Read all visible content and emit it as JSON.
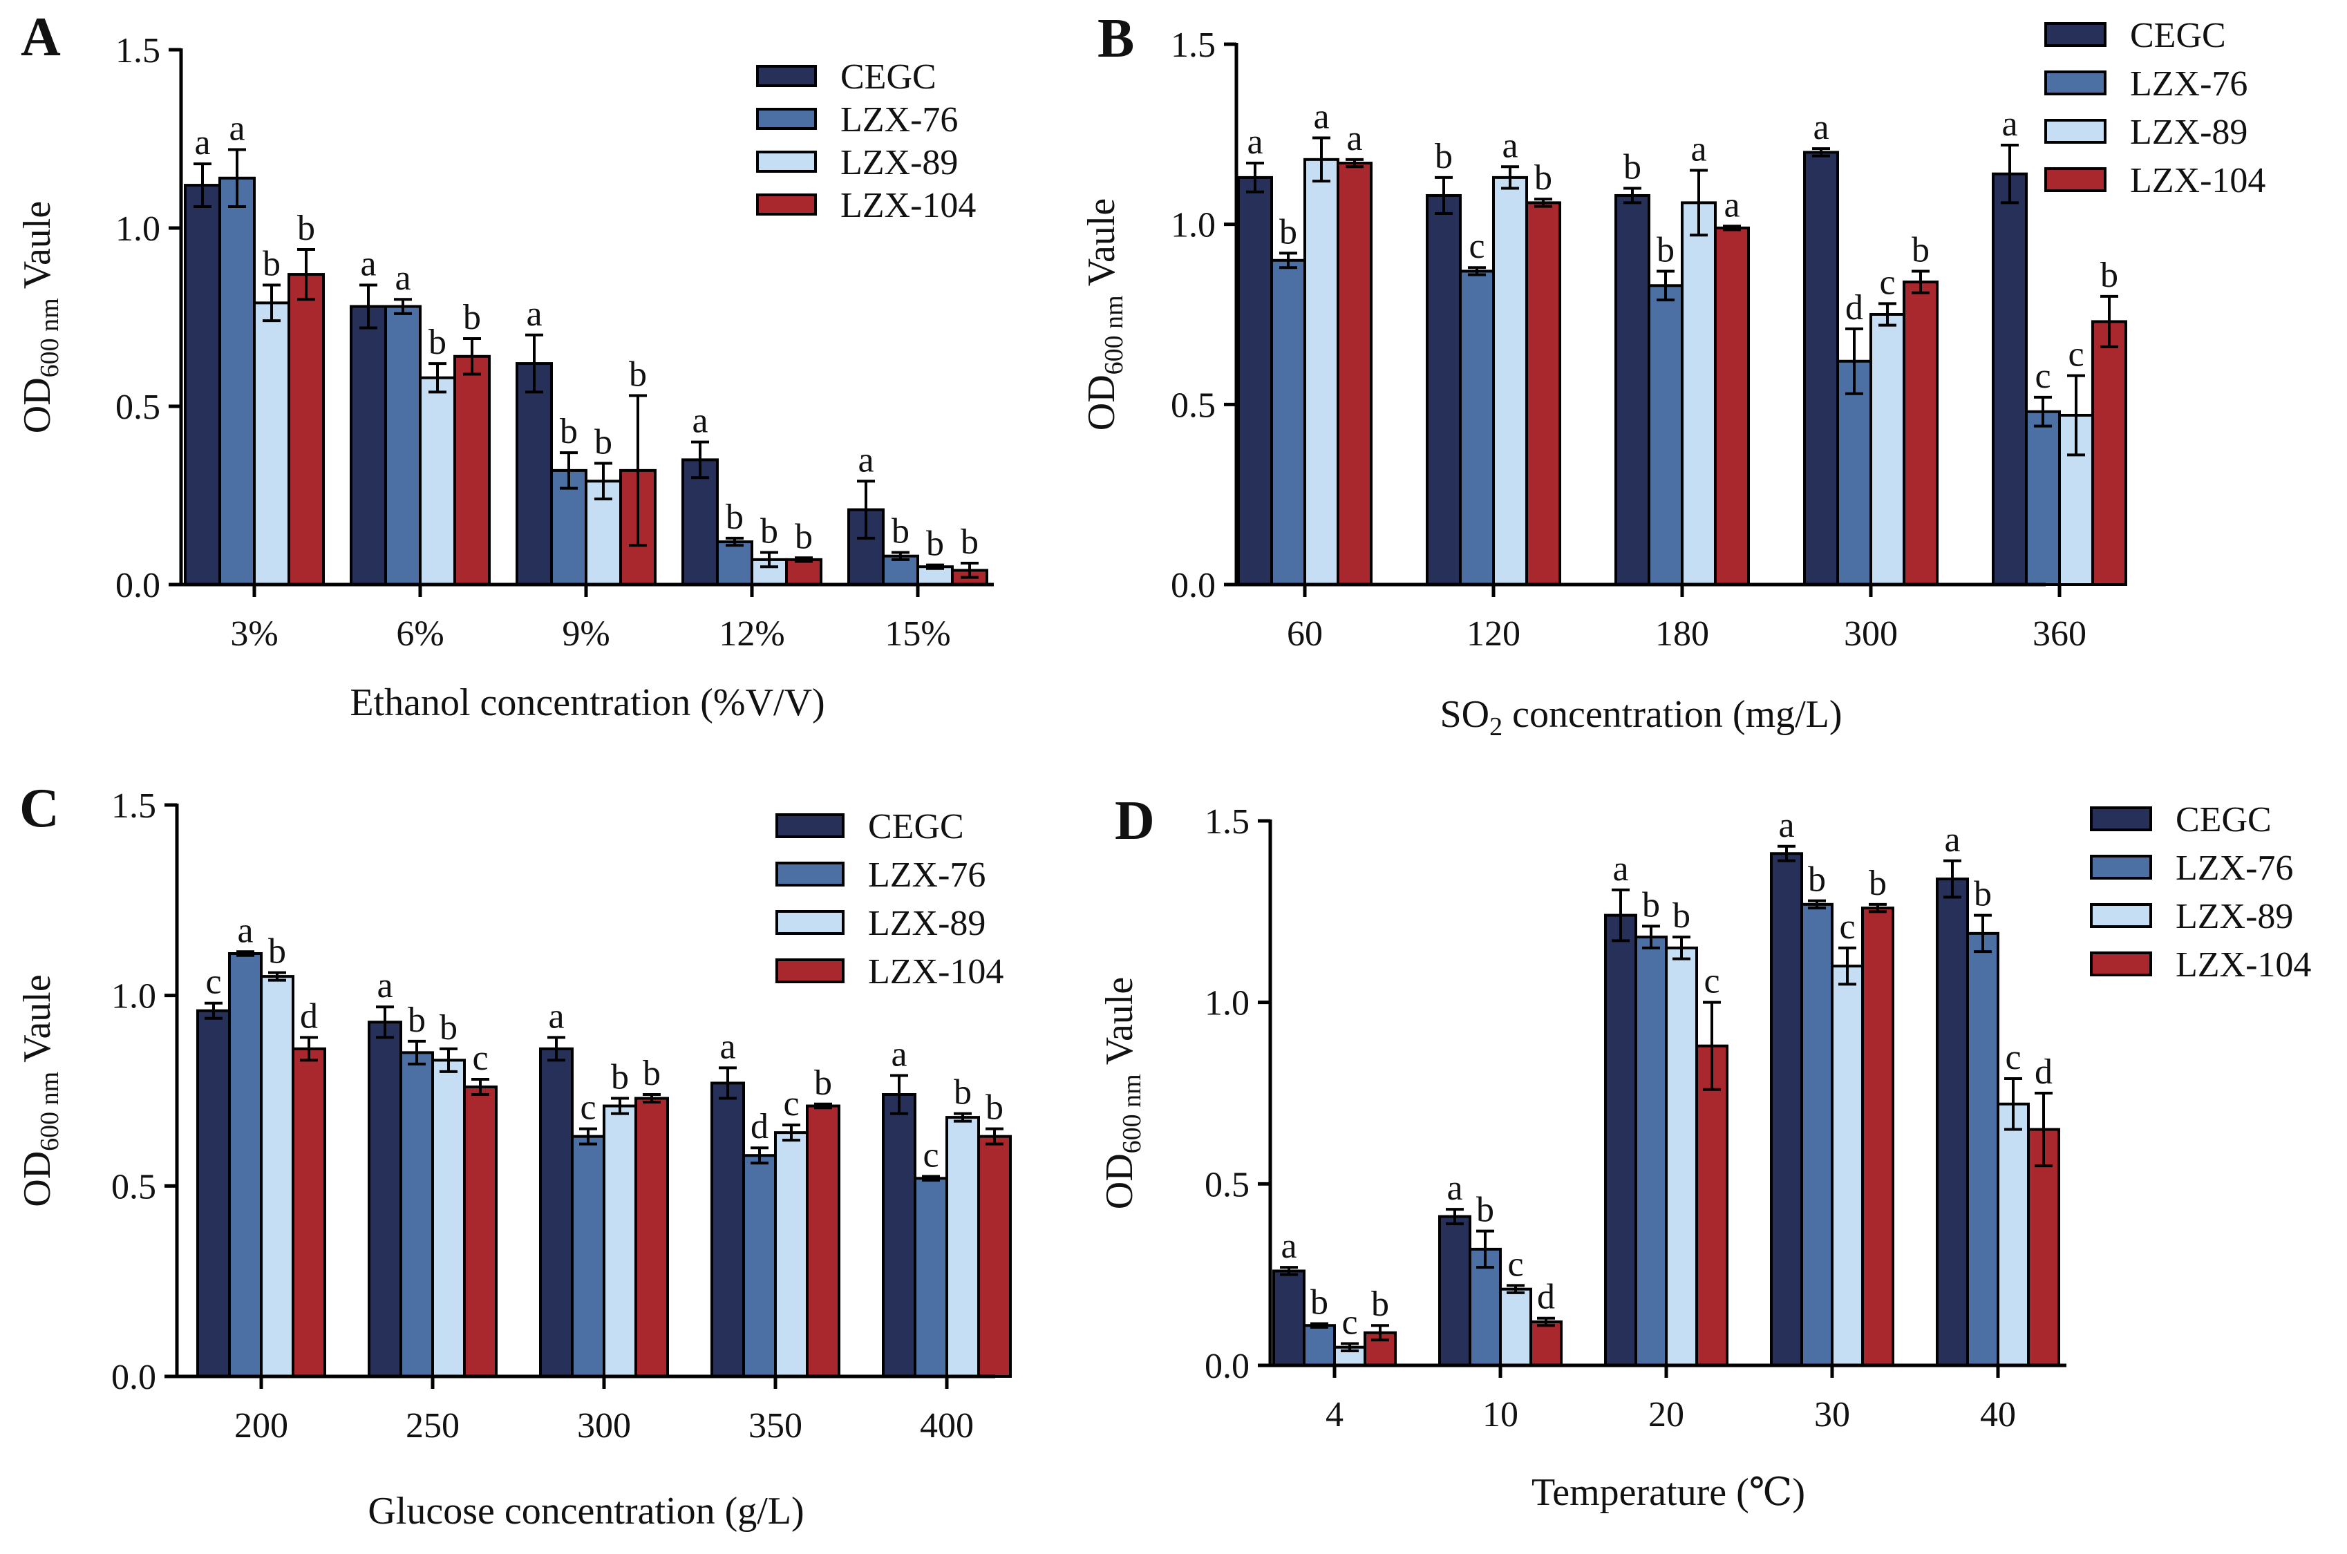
{
  "colors": {
    "CEGC": "#263059",
    "LZX-76": "#4c70a3",
    "LZX-89": "#c5def3",
    "LZX-104": "#a8282e"
  },
  "chart_data": [
    {
      "panel": "A",
      "type": "bar",
      "ylabel": "OD600 nm Vaule",
      "ylabel_main": "OD",
      "ylabel_sub": "600 nm",
      "ylabel_rest": " Vaule",
      "xlabel": "Ethanol concentration (%V/V)",
      "ylim": [
        0,
        1.5
      ],
      "yticks": [
        "0.0",
        "0.5",
        "1.0",
        "1.5"
      ],
      "categories": [
        "3%",
        "6%",
        "9%",
        "12%",
        "15%"
      ],
      "legend_position": "top-right",
      "series": [
        {
          "name": "CEGC",
          "values": [
            1.12,
            0.78,
            0.62,
            0.35,
            0.21
          ],
          "errors": [
            0.06,
            0.06,
            0.08,
            0.05,
            0.08
          ],
          "letters": [
            "a",
            "a",
            "a",
            "a",
            "a"
          ]
        },
        {
          "name": "LZX-76",
          "values": [
            1.14,
            0.78,
            0.32,
            0.12,
            0.08
          ],
          "errors": [
            0.08,
            0.02,
            0.05,
            0.01,
            0.01
          ],
          "letters": [
            "a",
            "a",
            "b",
            "b",
            "b"
          ]
        },
        {
          "name": "LZX-89",
          "values": [
            0.79,
            0.58,
            0.29,
            0.07,
            0.05
          ],
          "errors": [
            0.05,
            0.04,
            0.05,
            0.02,
            0.005
          ],
          "letters": [
            "b",
            "b",
            "b",
            "b",
            "b"
          ]
        },
        {
          "name": "LZX-104",
          "values": [
            0.87,
            0.64,
            0.32,
            0.07,
            0.04
          ],
          "errors": [
            0.07,
            0.05,
            0.21,
            0.005,
            0.02
          ],
          "letters": [
            "b",
            "b",
            "b",
            "b",
            "b"
          ]
        }
      ]
    },
    {
      "panel": "B",
      "type": "bar",
      "ylabel": "OD600 nm Vaule",
      "ylabel_main": "OD",
      "ylabel_sub": "600 nm",
      "ylabel_rest": " Vaule",
      "xlabel": "SO2 concentration (mg/L)",
      "xlabel_main": "SO",
      "xlabel_sub": "2",
      "xlabel_rest": " concentration (mg/L)",
      "ylim": [
        0,
        1.5
      ],
      "yticks": [
        "0.0",
        "0.5",
        "1.0",
        "1.5"
      ],
      "categories": [
        "60",
        "120",
        "180",
        "300",
        "360"
      ],
      "legend_position": "top-right",
      "series": [
        {
          "name": "CEGC",
          "values": [
            1.13,
            1.08,
            1.08,
            1.2,
            1.14
          ],
          "errors": [
            0.04,
            0.05,
            0.02,
            0.01,
            0.08
          ],
          "letters": [
            "a",
            "b",
            "b",
            "a",
            "a"
          ]
        },
        {
          "name": "LZX-76",
          "values": [
            0.9,
            0.87,
            0.83,
            0.62,
            0.48
          ],
          "errors": [
            0.02,
            0.01,
            0.04,
            0.09,
            0.04
          ],
          "letters": [
            "b",
            "c",
            "b",
            "d",
            "c"
          ]
        },
        {
          "name": "LZX-89",
          "values": [
            1.18,
            1.13,
            1.06,
            0.75,
            0.47
          ],
          "errors": [
            0.06,
            0.03,
            0.09,
            0.03,
            0.11
          ],
          "letters": [
            "a",
            "a",
            "a",
            "c",
            "c"
          ]
        },
        {
          "name": "LZX-104",
          "values": [
            1.17,
            1.06,
            0.99,
            0.84,
            0.73
          ],
          "errors": [
            0.01,
            0.01,
            0.005,
            0.03,
            0.07
          ],
          "letters": [
            "a",
            "b",
            "a",
            "b",
            "b"
          ]
        }
      ]
    },
    {
      "panel": "C",
      "type": "bar",
      "ylabel": "OD600 nm Vaule",
      "ylabel_main": "OD",
      "ylabel_sub": "600 nm",
      "ylabel_rest": " Vaule",
      "xlabel": "Glucose concentration (g/L)",
      "ylim": [
        0,
        1.5
      ],
      "yticks": [
        "0.0",
        "0.5",
        "1.0",
        "1.5"
      ],
      "categories": [
        "200",
        "250",
        "300",
        "350",
        "400"
      ],
      "legend_position": "top-right",
      "series": [
        {
          "name": "CEGC",
          "values": [
            0.96,
            0.93,
            0.86,
            0.77,
            0.74
          ],
          "errors": [
            0.02,
            0.04,
            0.03,
            0.04,
            0.05
          ],
          "letters": [
            "c",
            "a",
            "a",
            "a",
            "a"
          ]
        },
        {
          "name": "LZX-76",
          "values": [
            1.11,
            0.85,
            0.63,
            0.58,
            0.52
          ],
          "errors": [
            0.005,
            0.03,
            0.02,
            0.02,
            0.005
          ],
          "letters": [
            "a",
            "b",
            "c",
            "d",
            "c"
          ]
        },
        {
          "name": "LZX-89",
          "values": [
            1.05,
            0.83,
            0.71,
            0.64,
            0.68
          ],
          "errors": [
            0.01,
            0.03,
            0.02,
            0.02,
            0.01
          ],
          "letters": [
            "b",
            "b",
            "b",
            "c",
            "b"
          ]
        },
        {
          "name": "LZX-104",
          "values": [
            0.86,
            0.76,
            0.73,
            0.71,
            0.63
          ],
          "errors": [
            0.03,
            0.02,
            0.01,
            0.005,
            0.02
          ],
          "letters": [
            "d",
            "c",
            "b",
            "b",
            "b"
          ]
        }
      ]
    },
    {
      "panel": "D",
      "type": "bar",
      "ylabel": "OD600 nm Vaule",
      "ylabel_main": "OD",
      "ylabel_sub": "600 nm",
      "ylabel_rest": " Vaule",
      "xlabel": "Temperature (℃)",
      "ylim": [
        0,
        1.5
      ],
      "yticks": [
        "0.0",
        "0.5",
        "1.0",
        "1.5"
      ],
      "categories": [
        "4",
        "10",
        "20",
        "30",
        "40"
      ],
      "legend_position": "top-right",
      "series": [
        {
          "name": "CEGC",
          "values": [
            0.26,
            0.41,
            1.24,
            1.41,
            1.34
          ],
          "errors": [
            0.01,
            0.02,
            0.07,
            0.02,
            0.05
          ],
          "letters": [
            "a",
            "a",
            "a",
            "a",
            "a"
          ]
        },
        {
          "name": "LZX-76",
          "values": [
            0.11,
            0.32,
            1.18,
            1.27,
            1.19
          ],
          "errors": [
            0.005,
            0.05,
            0.03,
            0.01,
            0.05
          ],
          "letters": [
            "b",
            "b",
            "b",
            "b",
            "b"
          ]
        },
        {
          "name": "LZX-89",
          "values": [
            0.05,
            0.21,
            1.15,
            1.1,
            0.72
          ],
          "errors": [
            0.01,
            0.01,
            0.03,
            0.05,
            0.07
          ],
          "letters": [
            "c",
            "c",
            "b",
            "c",
            "c"
          ]
        },
        {
          "name": "LZX-104",
          "values": [
            0.09,
            0.12,
            0.88,
            1.26,
            0.65
          ],
          "errors": [
            0.02,
            0.01,
            0.12,
            0.01,
            0.1
          ],
          "letters": [
            "b",
            "d",
            "c",
            "b",
            "d"
          ]
        }
      ]
    }
  ]
}
